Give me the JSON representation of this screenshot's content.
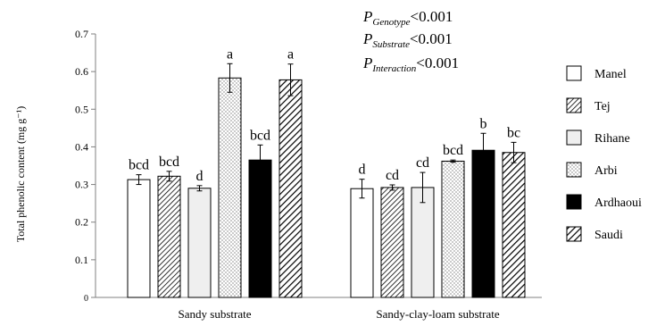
{
  "chart_data": {
    "type": "bar",
    "categories": [
      "Sandy substrate",
      "Sandy-clay-loam substrate"
    ],
    "ylabel": "Total phenolic content (mg g⁻¹)",
    "ylim": [
      0,
      0.7
    ],
    "yticks": [
      "0",
      "0.1",
      "0.2",
      "0.3",
      "0.4",
      "0.5",
      "0.6",
      "0.7"
    ],
    "grid": false,
    "legend_position": "right",
    "annotation": {
      "lines": [
        {
          "p": "P",
          "sub": "Genotype",
          "rest": "<0.001"
        },
        {
          "p": "P",
          "sub": "Substrate",
          "rest": "<0.001"
        },
        {
          "p": "P",
          "sub": "Interaction",
          "rest": "<0.001"
        }
      ]
    },
    "series": [
      {
        "name": "Manel",
        "pattern": "white",
        "values": [
          0.313,
          0.289
        ],
        "errors": [
          0.013,
          0.025
        ],
        "letters": [
          "bcd",
          "d"
        ]
      },
      {
        "name": "Tej",
        "pattern": "hatch-fine",
        "values": [
          0.322,
          0.292
        ],
        "errors": [
          0.013,
          0.007
        ],
        "letters": [
          "bcd",
          "cd"
        ]
      },
      {
        "name": "Rihane",
        "pattern": "lightgray",
        "values": [
          0.29,
          0.292
        ],
        "errors": [
          0.007,
          0.04
        ],
        "letters": [
          "d",
          "cd"
        ]
      },
      {
        "name": "Arbi",
        "pattern": "dots",
        "values": [
          0.583,
          0.362
        ],
        "errors": [
          0.038,
          0.003
        ],
        "letters": [
          "a",
          "bcd"
        ]
      },
      {
        "name": "Ardhaoui",
        "pattern": "black",
        "values": [
          0.365,
          0.391
        ],
        "errors": [
          0.04,
          0.045
        ],
        "letters": [
          "bcd",
          "b"
        ]
      },
      {
        "name": "Saudi",
        "pattern": "hatch-wide",
        "values": [
          0.578,
          0.385
        ],
        "errors": [
          0.042,
          0.027
        ],
        "letters": [
          "a",
          "bc"
        ]
      }
    ]
  }
}
